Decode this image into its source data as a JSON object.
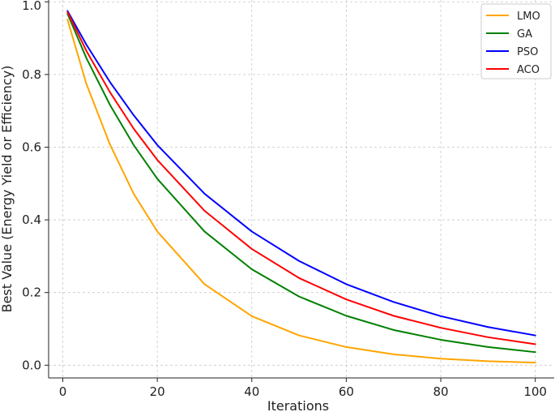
{
  "chart_data": {
    "type": "line",
    "title": "",
    "xlabel": "Iterations",
    "ylabel": "Best Value (Energy Yield or Efficiency)",
    "xlim": [
      -3,
      104
    ],
    "ylim": [
      -0.035,
      1.005
    ],
    "xticks": [
      0,
      20,
      40,
      60,
      80,
      100
    ],
    "yticks": [
      0.0,
      0.2,
      0.4,
      0.6,
      0.8,
      1.0
    ],
    "xtick_labels": [
      "0",
      "20",
      "40",
      "60",
      "80",
      "100"
    ],
    "ytick_labels": [
      "0.0",
      "0.2",
      "0.4",
      "0.6",
      "0.8",
      "1.0"
    ],
    "grid": true,
    "legend_position": "top-right",
    "x": [
      1,
      5,
      10,
      15,
      20,
      30,
      40,
      50,
      60,
      70,
      80,
      90,
      100
    ],
    "series": [
      {
        "name": "LMO",
        "color": "#ffa500",
        "values": [
          0.951,
          0.774,
          0.607,
          0.472,
          0.368,
          0.223,
          0.135,
          0.082,
          0.05,
          0.03,
          0.018,
          0.011,
          0.007
        ]
      },
      {
        "name": "GA",
        "color": "#008000",
        "values": [
          0.967,
          0.845,
          0.716,
          0.606,
          0.513,
          0.368,
          0.264,
          0.189,
          0.136,
          0.097,
          0.07,
          0.05,
          0.036
        ]
      },
      {
        "name": "PSO",
        "color": "#0000ff",
        "values": [
          0.975,
          0.882,
          0.779,
          0.688,
          0.606,
          0.472,
          0.368,
          0.287,
          0.223,
          0.174,
          0.135,
          0.105,
          0.082
        ]
      },
      {
        "name": "ACO",
        "color": "#ff0000",
        "values": [
          0.972,
          0.865,
          0.751,
          0.651,
          0.565,
          0.425,
          0.32,
          0.24,
          0.181,
          0.136,
          0.103,
          0.077,
          0.058
        ]
      }
    ]
  }
}
